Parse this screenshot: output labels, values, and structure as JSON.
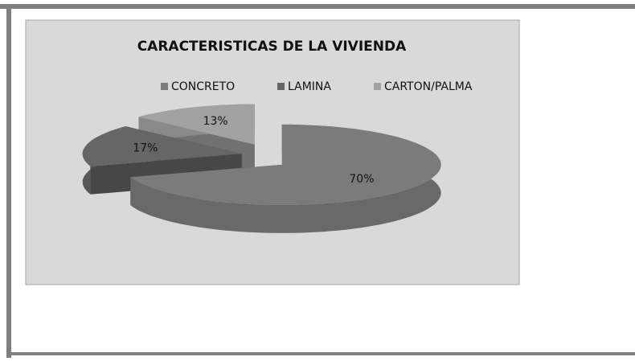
{
  "chart_data": {
    "type": "pie3d",
    "title": "CARACTERISTICAS DE LA VIVIENDA",
    "categories": [
      "CONCRETO",
      "LAMINA",
      "CARTON/PALMA"
    ],
    "values": [
      70,
      17,
      13
    ],
    "value_labels": [
      "70%",
      "17%",
      "13%"
    ],
    "colors": [
      "#7b7b7b",
      "#666666",
      "#a2a2a2"
    ],
    "legend": "top"
  }
}
